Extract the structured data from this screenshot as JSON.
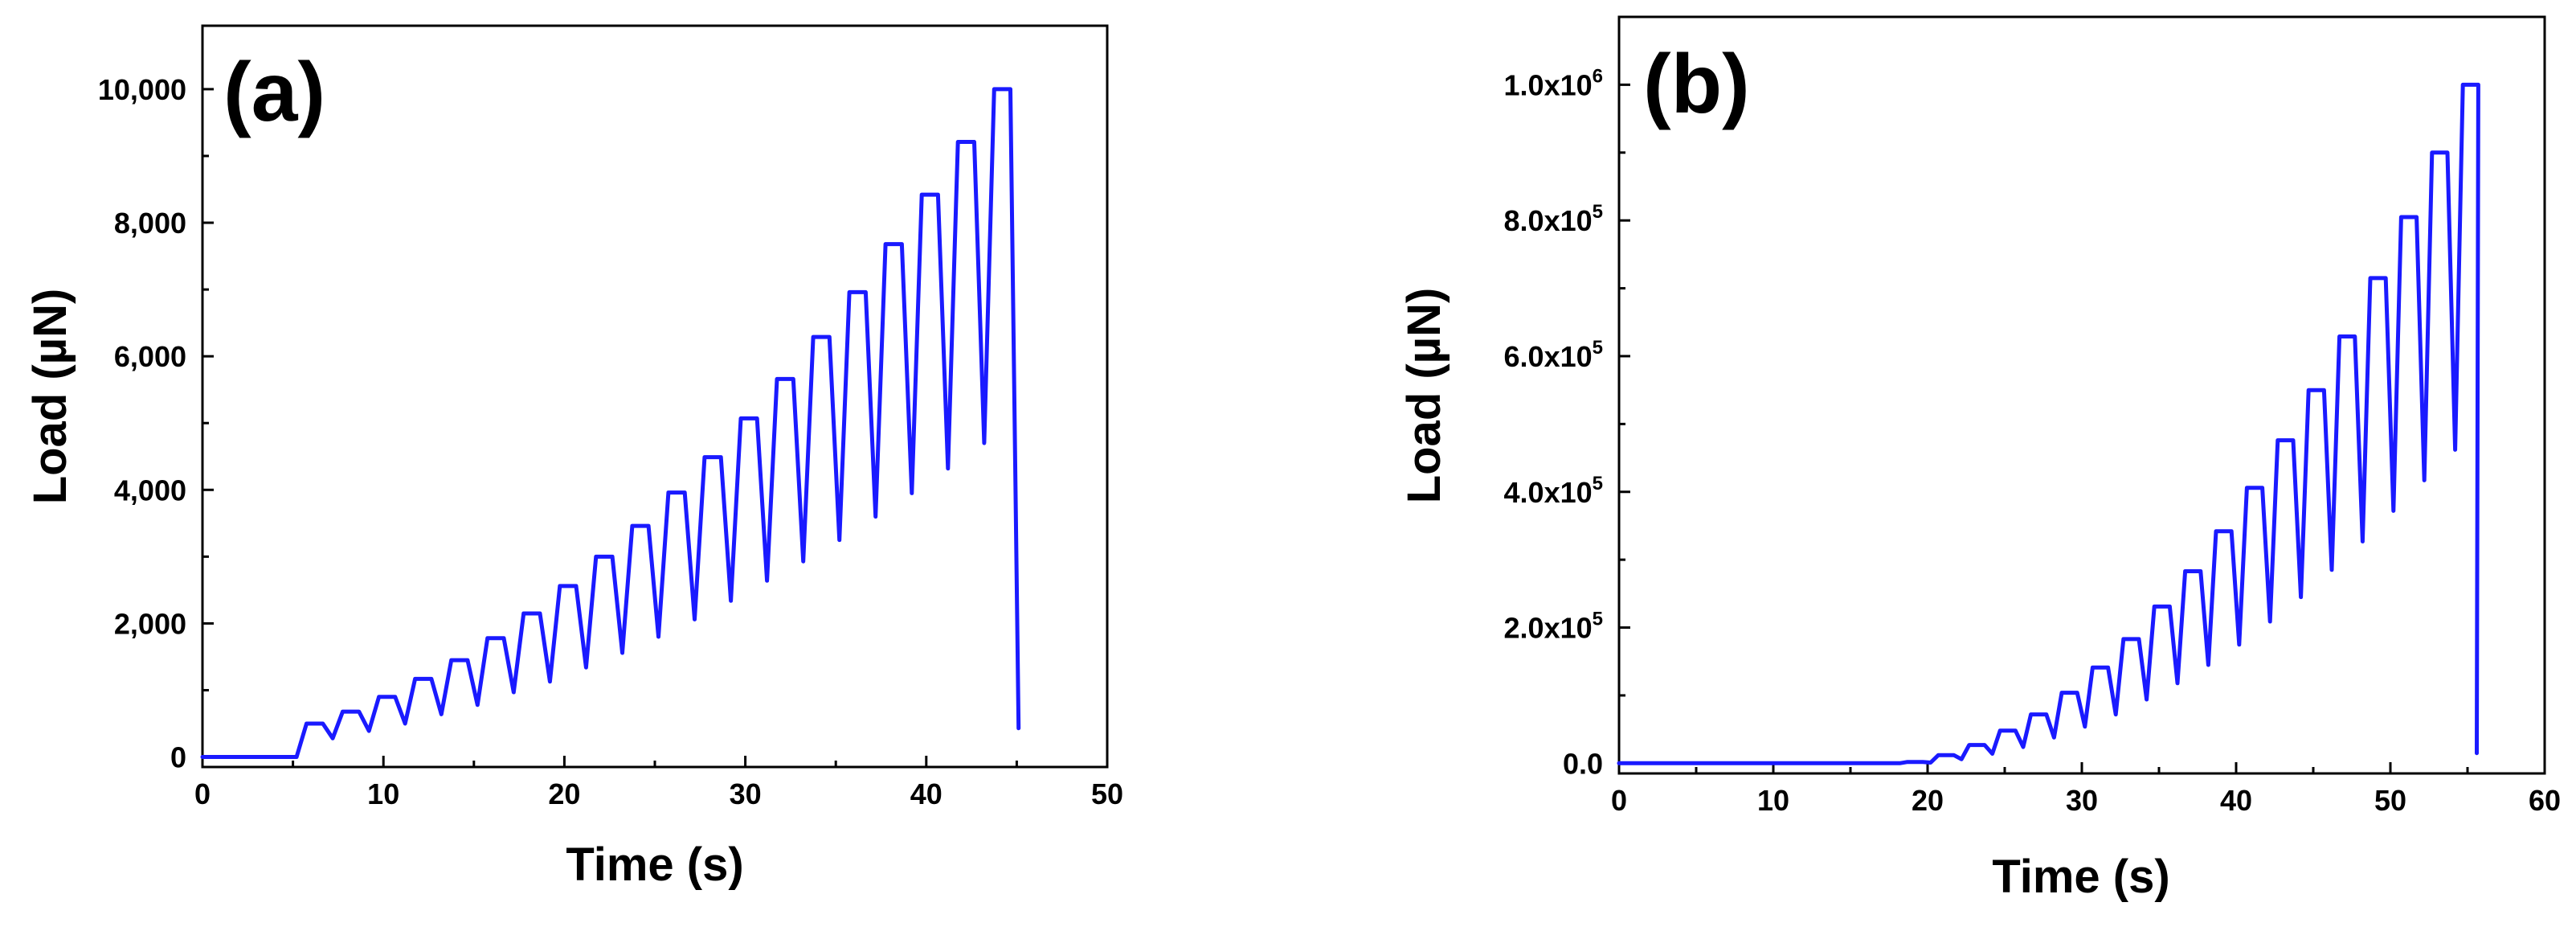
{
  "chart_data": [
    {
      "type": "line",
      "panel_label": "(a)",
      "xlabel": "Time (s)",
      "ylabel": "Load (µN)",
      "xlim": [
        0,
        50
      ],
      "ylim": [
        -150,
        10950
      ],
      "x_ticks": [
        0,
        10,
        20,
        30,
        40,
        50
      ],
      "x_tick_labels": [
        "0",
        "10",
        "20",
        "30",
        "40",
        "50"
      ],
      "y_ticks": [
        0,
        2000,
        4000,
        6000,
        8000,
        10000
      ],
      "y_tick_labels": [
        "0",
        "2,000",
        "4,000",
        "6,000",
        "8,000",
        "10,000"
      ],
      "grid": false,
      "series_color": "#1a1aff",
      "cycles": {
        "peaks": [
          500,
          680,
          900,
          1170,
          1450,
          1780,
          2150,
          2560,
          3000,
          3460,
          3960,
          4490,
          5070,
          5660,
          6290,
          6960,
          7680,
          8420,
          9210,
          10000
        ],
        "troughs": [
          0,
          280,
          390,
          500,
          640,
          780,
          970,
          1130,
          1340,
          1560,
          1800,
          2060,
          2340,
          2640,
          2930,
          3250,
          3600,
          3950,
          4320,
          4700
        ],
        "start": [
          0,
          0
        ],
        "first_rise_time": 5.2,
        "period_s": 2.0,
        "ramp_up_s": 0.55,
        "hold_s": 0.9,
        "ramp_down_s": 0.55,
        "end": [
          45.1,
          430
        ]
      }
    },
    {
      "type": "line",
      "panel_label": "(b)",
      "xlabel": "Time (s)",
      "ylabel": "Load (µN)",
      "xlim": [
        0,
        60
      ],
      "ylim": [
        -15000,
        1100000
      ],
      "x_ticks": [
        0,
        10,
        20,
        30,
        40,
        50,
        60
      ],
      "x_tick_labels": [
        "0",
        "10",
        "20",
        "30",
        "40",
        "50",
        "60"
      ],
      "y_ticks": [
        0,
        200000,
        400000,
        600000,
        800000,
        1000000
      ],
      "y_tick_labels": [
        {
          "mantissa": "0.0",
          "exponent": ""
        },
        {
          "mantissa": "2.0x10",
          "exponent": "5"
        },
        {
          "mantissa": "4.0x10",
          "exponent": "5"
        },
        {
          "mantissa": "6.0x10",
          "exponent": "5"
        },
        {
          "mantissa": "8.0x10",
          "exponent": "5"
        },
        {
          "mantissa": "1.0x10",
          "exponent": "6"
        }
      ],
      "grid": false,
      "series_color": "#1a1aff",
      "cycles": {
        "peaks": [
          2000,
          12000,
          27000,
          48000,
          72000,
          104000,
          141000,
          183000,
          231000,
          283000,
          342000,
          406000,
          476000,
          550000,
          629000,
          715000,
          805000,
          900000,
          1000000
        ],
        "troughs": [
          0,
          1000,
          6000,
          14000,
          24000,
          38000,
          54000,
          72000,
          94000,
          118000,
          145000,
          175000,
          209000,
          245000,
          285000,
          327000,
          372000,
          417000,
          462000
        ],
        "start": [
          0,
          0
        ],
        "first_rise_time": 18.2,
        "period_s": 2.0,
        "ramp_up_s": 0.5,
        "hold_s": 1.0,
        "ramp_down_s": 0.5,
        "end": [
          55.6,
          15000
        ]
      }
    }
  ]
}
